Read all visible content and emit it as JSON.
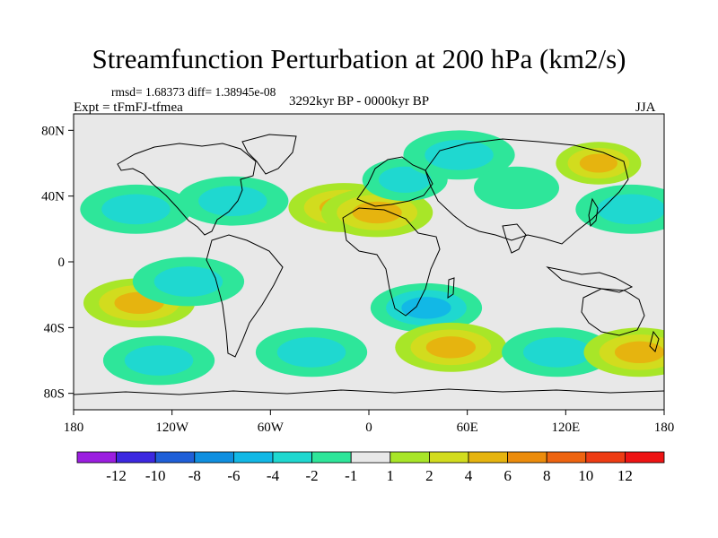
{
  "header": {
    "title": "Streamfunction Perturbation at 200 hPa (km2/s)",
    "stats": "rmsd= 1.68373 diff= 1.38945e-08",
    "experiment": "Expt = tFmFJ-tfmea",
    "period": "3292kyr BP - 0000kyr BP",
    "season": "JJA"
  },
  "chart_data": {
    "type": "heatmap",
    "title": "Streamfunction Perturbation at 200 hPa (km2/s)",
    "units": "km2/s",
    "projection": "cylindrical equidistant",
    "xlim": [
      -180,
      180
    ],
    "ylim": [
      -90,
      90
    ],
    "x_ticks": [
      {
        "value": -180,
        "label": "180"
      },
      {
        "value": -120,
        "label": "120W"
      },
      {
        "value": -60,
        "label": "60W"
      },
      {
        "value": 0,
        "label": "0"
      },
      {
        "value": 60,
        "label": "60E"
      },
      {
        "value": 120,
        "label": "120E"
      },
      {
        "value": 180,
        "label": "180"
      }
    ],
    "y_ticks": [
      {
        "value": 80,
        "label": "80N"
      },
      {
        "value": 40,
        "label": "40N"
      },
      {
        "value": 0,
        "label": "0"
      },
      {
        "value": -40,
        "label": "40S"
      },
      {
        "value": -80,
        "label": "80S"
      }
    ],
    "colorbar": {
      "levels": [
        -12,
        -10,
        -8,
        -6,
        -4,
        -2,
        -1,
        1,
        2,
        4,
        6,
        8,
        10,
        12
      ],
      "labels": [
        "-12",
        "-10",
        "-8",
        "-6",
        "-4",
        "-2",
        "-1",
        "1",
        "2",
        "4",
        "6",
        "8",
        "10",
        "12"
      ],
      "colors": [
        "#9b1ee0",
        "#3c28e0",
        "#1f5fd8",
        "#0f8fe0",
        "#12b8e6",
        "#1fd8d0",
        "#2ee69a",
        "#e8e8e8",
        "#a8e628",
        "#d2dc1e",
        "#e6b40f",
        "#ec8c0c",
        "#ee6410",
        "#ee3c14",
        "#ee1414"
      ]
    },
    "anomaly_regions": [
      {
        "name": "north pacific low",
        "lon": -142,
        "lat": 32,
        "value": -2.5
      },
      {
        "name": "north atlantic west low",
        "lon": -83,
        "lat": 37,
        "value": -2
      },
      {
        "name": "north atlantic high",
        "lon": -15,
        "lat": 33,
        "value": 5
      },
      {
        "name": "sahara high",
        "lon": 5,
        "lat": 30,
        "value": 4
      },
      {
        "name": "arabia low",
        "lon": 22,
        "lat": 50,
        "value": -2
      },
      {
        "name": "siberia low",
        "lon": 55,
        "lat": 65,
        "value": -2
      },
      {
        "name": "central asia low",
        "lon": 90,
        "lat": 45,
        "value": -1.5
      },
      {
        "name": "west pacific low",
        "lon": 160,
        "lat": 32,
        "value": -3
      },
      {
        "name": "east asia high",
        "lon": 140,
        "lat": 60,
        "value": 4
      },
      {
        "name": "south pacific high",
        "lon": -140,
        "lat": -25,
        "value": 5
      },
      {
        "name": "central pacific low",
        "lon": -110,
        "lat": -12,
        "value": -2
      },
      {
        "name": "south atlantic low",
        "lon": 35,
        "lat": -28,
        "value": -4
      },
      {
        "name": "southwest pacific low",
        "lon": -128,
        "lat": -60,
        "value": -3
      },
      {
        "name": "southern ocean low",
        "lon": -35,
        "lat": -55,
        "value": -3
      },
      {
        "name": "south indian high",
        "lon": 50,
        "lat": -52,
        "value": 4
      },
      {
        "name": "south indian low",
        "lon": 115,
        "lat": -55,
        "value": -2
      },
      {
        "name": "australia high",
        "lon": 165,
        "lat": -55,
        "value": 4
      }
    ]
  }
}
